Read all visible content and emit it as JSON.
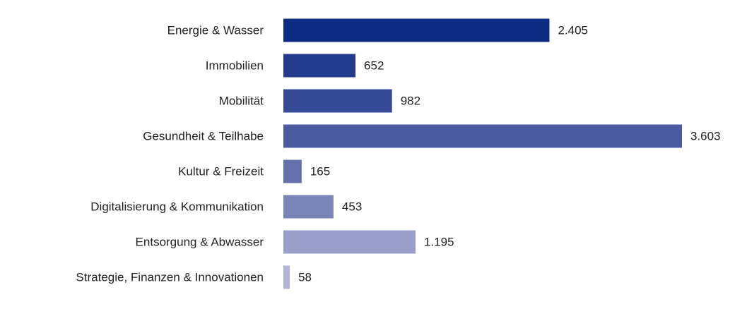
{
  "chart_data": {
    "type": "bar",
    "orientation": "horizontal",
    "title": "",
    "xlabel": "",
    "ylabel": "",
    "grid": false,
    "legend": "none",
    "categories": [
      "Energie & Wasser",
      "Immobilien",
      "Mobilität",
      "Gesundheit & Teilhabe",
      "Kultur & Freizeit",
      "Digitalisierung & Kommunikation",
      "Entsorgung & Abwasser",
      "Strategie, Finanzen & Innovationen"
    ],
    "values": [
      2405,
      652,
      982,
      3603,
      165,
      453,
      1195,
      58
    ],
    "value_labels": [
      "2.405",
      "652",
      "982",
      "3.603",
      "165",
      "453",
      "1.195",
      "58"
    ],
    "colors": [
      "#0c2b83",
      "#233a8d",
      "#364995",
      "#4c5ba0",
      "#6470ad",
      "#7b84b9",
      "#9a9fc9",
      "#b1b4d6"
    ],
    "xlim": [
      0,
      3603
    ]
  }
}
